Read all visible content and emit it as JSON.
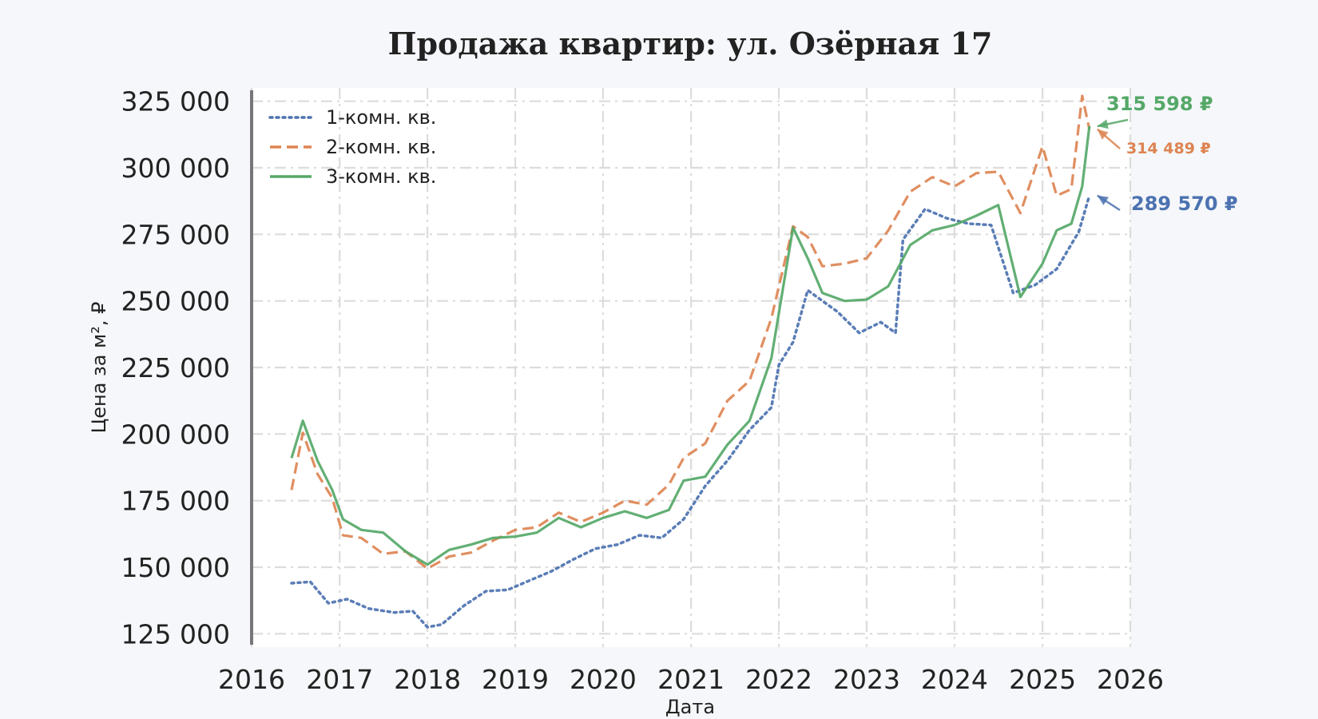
{
  "chart_data": {
    "type": "line",
    "title": "Продажа квартир: ул. Озёрная 17",
    "xlabel": "Дата",
    "ylabel": "Цена за м², ₽",
    "xlim": [
      "2016-01-01",
      "2026-01-01"
    ],
    "ylim": [
      120000,
      330000
    ],
    "x_ticks": [
      "2016",
      "2017",
      "2018",
      "2019",
      "2020",
      "2021",
      "2022",
      "2023",
      "2024",
      "2025",
      "2026"
    ],
    "y_ticks": [
      "125 000",
      "150 000",
      "175 000",
      "200 000",
      "225 000",
      "250 000",
      "275 000",
      "300 000",
      "325 000"
    ],
    "grid": true,
    "legend_position": "top-left",
    "series": [
      {
        "name": "1-комн. кв.",
        "color": "#4c72b0",
        "line_style": "dotted",
        "final_label": "289 570 ₽",
        "points": [
          [
            "2016-06-15",
            144000
          ],
          [
            "2016-09-01",
            144500
          ],
          [
            "2016-11-15",
            136500
          ],
          [
            "2017-02-01",
            138000
          ],
          [
            "2017-05-01",
            134500
          ],
          [
            "2017-08-15",
            133000
          ],
          [
            "2017-11-01",
            133500
          ],
          [
            "2018-01-01",
            127500
          ],
          [
            "2018-03-01",
            128500
          ],
          [
            "2018-06-01",
            135500
          ],
          [
            "2018-09-01",
            141000
          ],
          [
            "2018-12-01",
            141500
          ],
          [
            "2019-03-01",
            145000
          ],
          [
            "2019-06-01",
            148500
          ],
          [
            "2019-09-01",
            153000
          ],
          [
            "2019-12-01",
            157000
          ],
          [
            "2020-03-01",
            158500
          ],
          [
            "2020-06-01",
            162000
          ],
          [
            "2020-09-01",
            161000
          ],
          [
            "2020-12-01",
            168000
          ],
          [
            "2021-03-01",
            180500
          ],
          [
            "2021-06-01",
            190000
          ],
          [
            "2021-09-01",
            201500
          ],
          [
            "2021-12-01",
            210000
          ],
          [
            "2022-01-01",
            226000
          ],
          [
            "2022-03-01",
            234500
          ],
          [
            "2022-05-01",
            254000
          ],
          [
            "2022-07-01",
            250000
          ],
          [
            "2022-09-01",
            246000
          ],
          [
            "2022-12-01",
            238000
          ],
          [
            "2023-03-01",
            242000
          ],
          [
            "2023-05-01",
            238000
          ],
          [
            "2023-06-01",
            273000
          ],
          [
            "2023-09-01",
            284500
          ],
          [
            "2023-12-01",
            281000
          ],
          [
            "2024-03-01",
            279000
          ],
          [
            "2024-06-01",
            278500
          ],
          [
            "2024-09-01",
            253000
          ],
          [
            "2024-12-01",
            256000
          ],
          [
            "2025-03-01",
            262000
          ],
          [
            "2025-06-01",
            276000
          ],
          [
            "2025-07-15",
            289570
          ]
        ]
      },
      {
        "name": "2-комн. кв.",
        "color": "#dd8452",
        "line_style": "dashed",
        "final_label": "314 489 ₽",
        "points": [
          [
            "2016-06-15",
            179000
          ],
          [
            "2016-08-01",
            200500
          ],
          [
            "2016-10-01",
            185000
          ],
          [
            "2016-12-01",
            176000
          ],
          [
            "2017-01-15",
            162000
          ],
          [
            "2017-04-01",
            161000
          ],
          [
            "2017-07-01",
            155000
          ],
          [
            "2017-10-01",
            156000
          ],
          [
            "2018-01-01",
            149500
          ],
          [
            "2018-04-01",
            154000
          ],
          [
            "2018-07-01",
            155500
          ],
          [
            "2018-10-01",
            160000
          ],
          [
            "2019-01-01",
            164000
          ],
          [
            "2019-04-01",
            165000
          ],
          [
            "2019-07-01",
            170500
          ],
          [
            "2019-10-01",
            167000
          ],
          [
            "2020-01-01",
            170500
          ],
          [
            "2020-04-01",
            175000
          ],
          [
            "2020-07-01",
            173500
          ],
          [
            "2020-10-01",
            181000
          ],
          [
            "2020-12-01",
            191000
          ],
          [
            "2021-03-01",
            196500
          ],
          [
            "2021-06-01",
            212500
          ],
          [
            "2021-09-01",
            220000
          ],
          [
            "2021-12-01",
            243500
          ],
          [
            "2022-03-01",
            278000
          ],
          [
            "2022-05-01",
            274000
          ],
          [
            "2022-07-01",
            263000
          ],
          [
            "2022-10-01",
            264000
          ],
          [
            "2023-01-01",
            266000
          ],
          [
            "2023-04-01",
            276500
          ],
          [
            "2023-07-01",
            291000
          ],
          [
            "2023-10-01",
            296500
          ],
          [
            "2024-01-01",
            293000
          ],
          [
            "2024-04-01",
            298000
          ],
          [
            "2024-07-01",
            298500
          ],
          [
            "2024-10-01",
            283000
          ],
          [
            "2025-01-01",
            308000
          ],
          [
            "2025-03-01",
            289500
          ],
          [
            "2025-05-01",
            292000
          ],
          [
            "2025-06-15",
            327000
          ],
          [
            "2025-07-15",
            314489
          ]
        ]
      },
      {
        "name": "3-комн. кв.",
        "color": "#55a868",
        "line_style": "solid",
        "final_label": "315 598 ₽",
        "points": [
          [
            "2016-06-15",
            191000
          ],
          [
            "2016-08-01",
            205000
          ],
          [
            "2016-10-01",
            190000
          ],
          [
            "2016-12-01",
            179000
          ],
          [
            "2017-01-15",
            168000
          ],
          [
            "2017-04-01",
            164000
          ],
          [
            "2017-07-01",
            163000
          ],
          [
            "2017-10-01",
            156000
          ],
          [
            "2018-01-01",
            151000
          ],
          [
            "2018-04-01",
            156500
          ],
          [
            "2018-07-01",
            158500
          ],
          [
            "2018-10-01",
            161000
          ],
          [
            "2019-01-01",
            161500
          ],
          [
            "2019-04-01",
            163000
          ],
          [
            "2019-07-01",
            168500
          ],
          [
            "2019-10-01",
            165000
          ],
          [
            "2020-01-01",
            168500
          ],
          [
            "2020-04-01",
            171000
          ],
          [
            "2020-07-01",
            168500
          ],
          [
            "2020-10-01",
            171500
          ],
          [
            "2020-12-01",
            182500
          ],
          [
            "2021-03-01",
            184000
          ],
          [
            "2021-06-01",
            196000
          ],
          [
            "2021-09-01",
            205000
          ],
          [
            "2021-12-01",
            228500
          ],
          [
            "2022-03-01",
            277500
          ],
          [
            "2022-05-01",
            266000
          ],
          [
            "2022-07-01",
            253000
          ],
          [
            "2022-10-01",
            250000
          ],
          [
            "2023-01-01",
            250500
          ],
          [
            "2023-04-01",
            255500
          ],
          [
            "2023-07-01",
            271000
          ],
          [
            "2023-10-01",
            276500
          ],
          [
            "2024-01-01",
            278500
          ],
          [
            "2024-04-01",
            282000
          ],
          [
            "2024-07-01",
            286000
          ],
          [
            "2024-10-01",
            251500
          ],
          [
            "2025-01-01",
            264000
          ],
          [
            "2025-03-01",
            276500
          ],
          [
            "2025-05-01",
            279000
          ],
          [
            "2025-06-15",
            293000
          ],
          [
            "2025-07-15",
            315598
          ]
        ]
      }
    ]
  }
}
